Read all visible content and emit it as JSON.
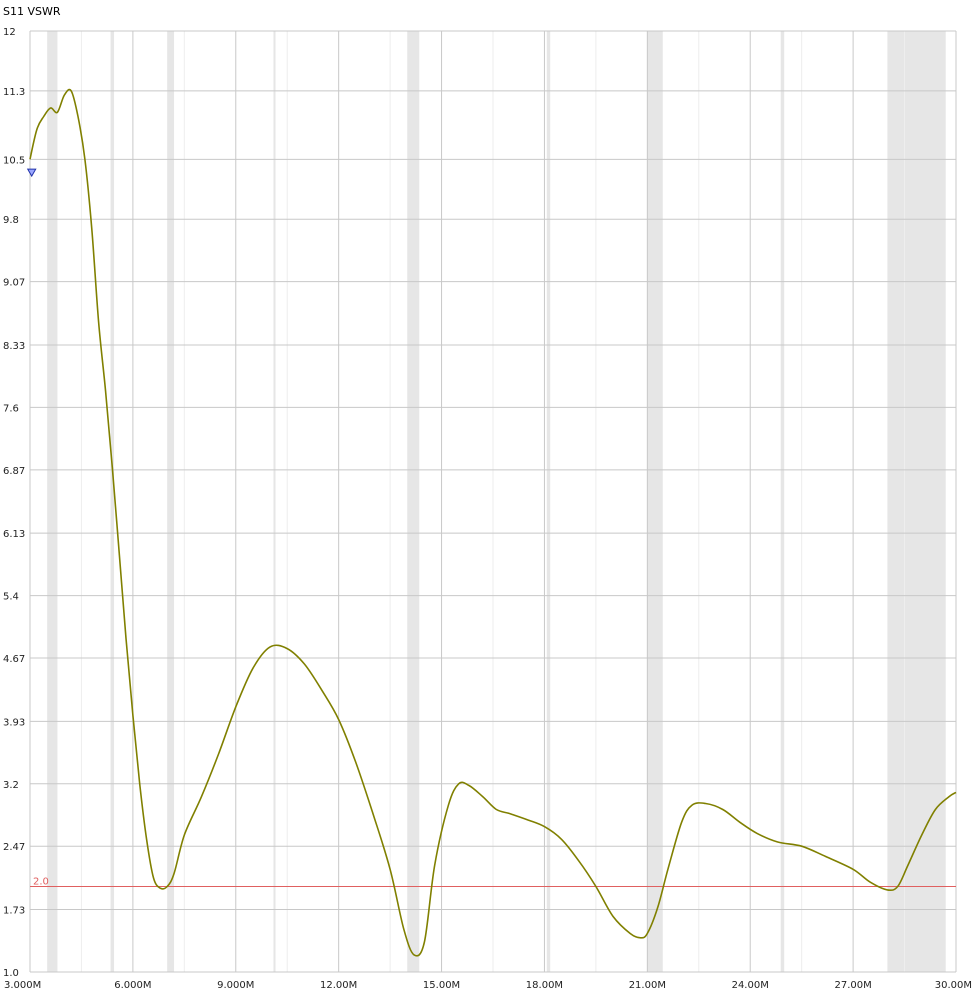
{
  "chart_data": {
    "type": "line",
    "title": "S11 VSWR",
    "xlabel": "",
    "ylabel": "",
    "xlim": [
      3.0,
      30.0
    ],
    "ylim": [
      1.0,
      12.0
    ],
    "grid": true,
    "legend": "none",
    "yticks": [
      {
        "value": 1.0,
        "label": "1.0"
      },
      {
        "value": 1.73,
        "label": "1.73"
      },
      {
        "value": 2.47,
        "label": "2.47"
      },
      {
        "value": 3.2,
        "label": "3.2"
      },
      {
        "value": 3.93,
        "label": "3.93"
      },
      {
        "value": 4.67,
        "label": "4.67"
      },
      {
        "value": 5.4,
        "label": "5.4"
      },
      {
        "value": 6.13,
        "label": "6.13"
      },
      {
        "value": 6.87,
        "label": "6.87"
      },
      {
        "value": 7.6,
        "label": "7.6"
      },
      {
        "value": 8.33,
        "label": "8.33"
      },
      {
        "value": 9.07,
        "label": "9.07"
      },
      {
        "value": 9.8,
        "label": "9.8"
      },
      {
        "value": 10.5,
        "label": "10.5"
      },
      {
        "value": 11.3,
        "label": "11.3"
      },
      {
        "value": 12,
        "label": "12"
      }
    ],
    "xticks": [
      {
        "value": 3.0,
        "label": "3.000M"
      },
      {
        "value": 6.0,
        "label": "6.000M"
      },
      {
        "value": 9.0,
        "label": "9.000M"
      },
      {
        "value": 12.0,
        "label": "12.00M"
      },
      {
        "value": 15.0,
        "label": "15.00M"
      },
      {
        "value": 18.0,
        "label": "18.00M"
      },
      {
        "value": 21.0,
        "label": "21.00M"
      },
      {
        "value": 24.0,
        "label": "24.00M"
      },
      {
        "value": 27.0,
        "label": "27.00M"
      },
      {
        "value": 30.0,
        "label": "30.00M"
      }
    ],
    "minor_grid_x": [
      4.5,
      7.5,
      10.5,
      13.5,
      16.5,
      19.5,
      22.5,
      25.5,
      28.5
    ],
    "bands": [
      {
        "start": 3.5,
        "end": 3.8
      },
      {
        "start": 5.35,
        "end": 5.45
      },
      {
        "start": 7.0,
        "end": 7.2
      },
      {
        "start": 10.1,
        "end": 10.15
      },
      {
        "start": 14.0,
        "end": 14.35
      },
      {
        "start": 18.068,
        "end": 18.168
      },
      {
        "start": 21.0,
        "end": 21.45
      },
      {
        "start": 24.89,
        "end": 24.99
      },
      {
        "start": 28.0,
        "end": 29.7
      }
    ],
    "reference_line": {
      "value": 2.0,
      "label": "2.0",
      "color": "#e06060"
    },
    "marker": {
      "x": 3.05,
      "y": 10.35
    },
    "series": [
      {
        "color": "#808000",
        "x": [
          3.0,
          3.2,
          3.4,
          3.6,
          3.8,
          4.0,
          4.2,
          4.4,
          4.6,
          4.8,
          5.0,
          5.2,
          5.4,
          5.6,
          5.8,
          6.0,
          6.2,
          6.4,
          6.6,
          6.8,
          7.0,
          7.2,
          7.5,
          8.0,
          8.5,
          9.0,
          9.5,
          10.0,
          10.5,
          11.0,
          11.5,
          12.0,
          12.5,
          13.0,
          13.5,
          13.9,
          14.2,
          14.5,
          14.8,
          15.2,
          15.5,
          15.8,
          16.2,
          16.6,
          17.0,
          17.5,
          18.0,
          18.5,
          19.0,
          19.5,
          20.0,
          20.5,
          20.8,
          21.0,
          21.3,
          21.6,
          22.0,
          22.3,
          22.7,
          23.2,
          23.7,
          24.2,
          24.8,
          25.5,
          26.2,
          27.0,
          27.5,
          28.0,
          28.3,
          28.6,
          29.0,
          29.4,
          29.8,
          30.0
        ],
        "y": [
          10.5,
          10.85,
          11.0,
          11.1,
          11.05,
          11.25,
          11.3,
          11.0,
          10.5,
          9.7,
          8.6,
          7.8,
          6.9,
          5.9,
          4.9,
          4.0,
          3.2,
          2.55,
          2.1,
          1.98,
          2.0,
          2.15,
          2.6,
          3.05,
          3.55,
          4.1,
          4.55,
          4.8,
          4.78,
          4.6,
          4.3,
          3.95,
          3.45,
          2.85,
          2.2,
          1.5,
          1.2,
          1.35,
          2.25,
          2.95,
          3.2,
          3.18,
          3.05,
          2.9,
          2.85,
          2.78,
          2.7,
          2.55,
          2.3,
          2.0,
          1.65,
          1.45,
          1.4,
          1.45,
          1.75,
          2.2,
          2.75,
          2.95,
          2.97,
          2.9,
          2.75,
          2.62,
          2.52,
          2.47,
          2.35,
          2.2,
          2.05,
          1.96,
          2.0,
          2.25,
          2.6,
          2.9,
          3.05,
          3.1
        ]
      }
    ]
  }
}
